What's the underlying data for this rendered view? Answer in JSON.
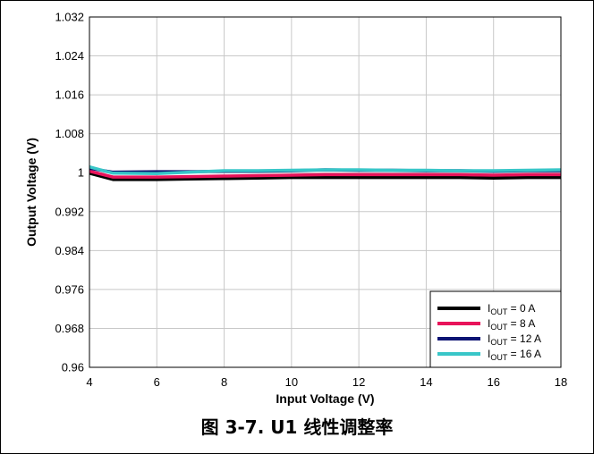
{
  "caption": "图 3-7. U1 线性调整率",
  "chart_data": {
    "type": "line",
    "title": "",
    "xlabel": "Input Voltage (V)",
    "ylabel": "Output Voltage (V)",
    "xlim": [
      4,
      18
    ],
    "ylim": [
      0.96,
      1.032
    ],
    "x_ticks": [
      4,
      6,
      8,
      10,
      12,
      14,
      16,
      18
    ],
    "y_ticks": [
      0.96,
      0.968,
      0.976,
      0.984,
      0.992,
      1,
      1.008,
      1.016,
      1.024,
      1.032
    ],
    "y_tick_labels": [
      "0.96",
      "0.968",
      "0.976",
      "0.984",
      "0.992",
      "1",
      "1.008",
      "1.016",
      "1.024",
      "1.032"
    ],
    "grid": true,
    "legend_position": "bottom-right",
    "x": [
      4,
      4.7,
      6,
      7,
      8,
      9,
      10,
      11,
      12,
      13,
      14,
      15,
      16,
      17,
      18
    ],
    "series": [
      {
        "legend_main": "I",
        "legend_sub": "OUT",
        "legend_rest": " = 0 A",
        "color": "#000000",
        "values": [
          0.9999,
          0.9986,
          0.9986,
          0.9987,
          0.9988,
          0.9989,
          0.999,
          0.999,
          0.999,
          0.999,
          0.999,
          0.999,
          0.9989,
          0.999,
          0.999
        ]
      },
      {
        "legend_main": "I",
        "legend_sub": "OUT",
        "legend_rest": " = 8 A",
        "color": "#e8135a",
        "values": [
          1.0003,
          0.9991,
          0.9991,
          0.9992,
          0.9993,
          0.9994,
          0.9995,
          0.9996,
          0.9996,
          0.9996,
          0.9996,
          0.9996,
          0.9995,
          0.9996,
          0.9996
        ]
      },
      {
        "legend_main": "I",
        "legend_sub": "OUT",
        "legend_rest": " = 12 A",
        "color": "#0d1373",
        "values": [
          1.0009,
          1.0001,
          1.0002,
          1.0002,
          1.0003,
          1.0003,
          1.0004,
          1.0006,
          1.0005,
          1.0005,
          1.0004,
          1.0004,
          1.0003,
          1.0004,
          1.0004
        ]
      },
      {
        "legend_main": "I",
        "legend_sub": "OUT",
        "legend_rest": " = 16 A",
        "color": "#38c6c8",
        "values": [
          1.0012,
          0.9999,
          0.9998,
          1.0001,
          1.0004,
          1.0004,
          1.0005,
          1.0006,
          1.0006,
          1.0005,
          1.0005,
          1.0004,
          1.0004,
          1.0005,
          1.0006
        ]
      }
    ]
  }
}
